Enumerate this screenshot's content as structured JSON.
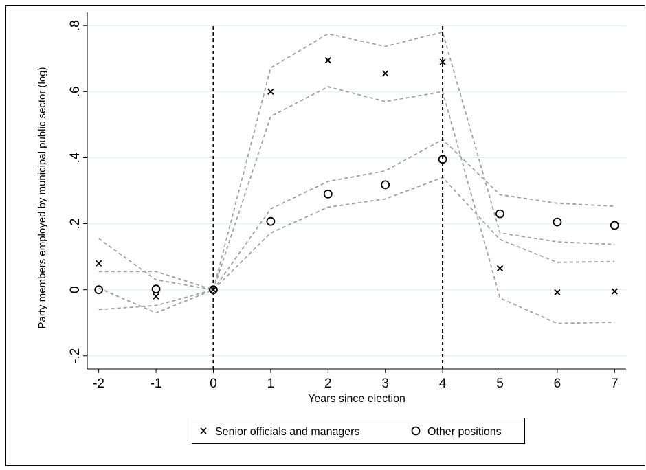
{
  "chart_data": {
    "type": "scatter",
    "xlabel": "Years since election",
    "ylabel": "Party members employed by municipal public sector (log)",
    "xlim": [
      -2.2,
      7.2
    ],
    "ylim": [
      -0.24,
      0.84
    ],
    "x_ticks": [
      -2,
      -1,
      0,
      1,
      2,
      3,
      4,
      5,
      6,
      7
    ],
    "x_tick_labels": [
      "-2",
      "-1",
      "0",
      "1",
      "2",
      "3",
      "4",
      "5",
      "6",
      "7"
    ],
    "y_ticks": [
      -0.2,
      0,
      0.2,
      0.4,
      0.6,
      0.8
    ],
    "y_tick_labels": [
      "-.2",
      "0",
      ".2",
      ".4",
      ".6",
      ".8"
    ],
    "grid": "horizontal",
    "vlines": [
      0,
      4
    ],
    "legend": {
      "position": "bottom"
    },
    "x": [
      -2,
      -1,
      0,
      1,
      2,
      3,
      4,
      5,
      6,
      7
    ],
    "series": [
      {
        "name": "Senior officials and managers",
        "marker": "x",
        "color": "#000000",
        "values": [
          0.08,
          -0.02,
          0.0,
          0.6,
          0.695,
          0.655,
          0.69,
          0.065,
          -0.008,
          -0.005
        ],
        "ci_lower": [
          0.005,
          -0.07,
          0.0,
          0.525,
          0.615,
          0.57,
          0.6,
          -0.025,
          -0.102,
          -0.098
        ],
        "ci_upper": [
          0.155,
          0.03,
          0.0,
          0.672,
          0.775,
          0.737,
          0.78,
          0.172,
          0.145,
          0.137
        ]
      },
      {
        "name": "Other positions",
        "marker": "circle",
        "color": "#000000",
        "values": [
          0.0,
          0.002,
          0.0,
          0.207,
          0.29,
          0.318,
          0.395,
          0.23,
          0.205,
          0.195
        ],
        "ci_lower": [
          -0.06,
          -0.048,
          0.0,
          0.172,
          0.25,
          0.275,
          0.34,
          0.152,
          0.083,
          0.085
        ],
        "ci_upper": [
          0.055,
          0.055,
          0.0,
          0.245,
          0.328,
          0.36,
          0.455,
          0.288,
          0.262,
          0.253
        ]
      }
    ],
    "ci_color": "#a0a0a0"
  }
}
